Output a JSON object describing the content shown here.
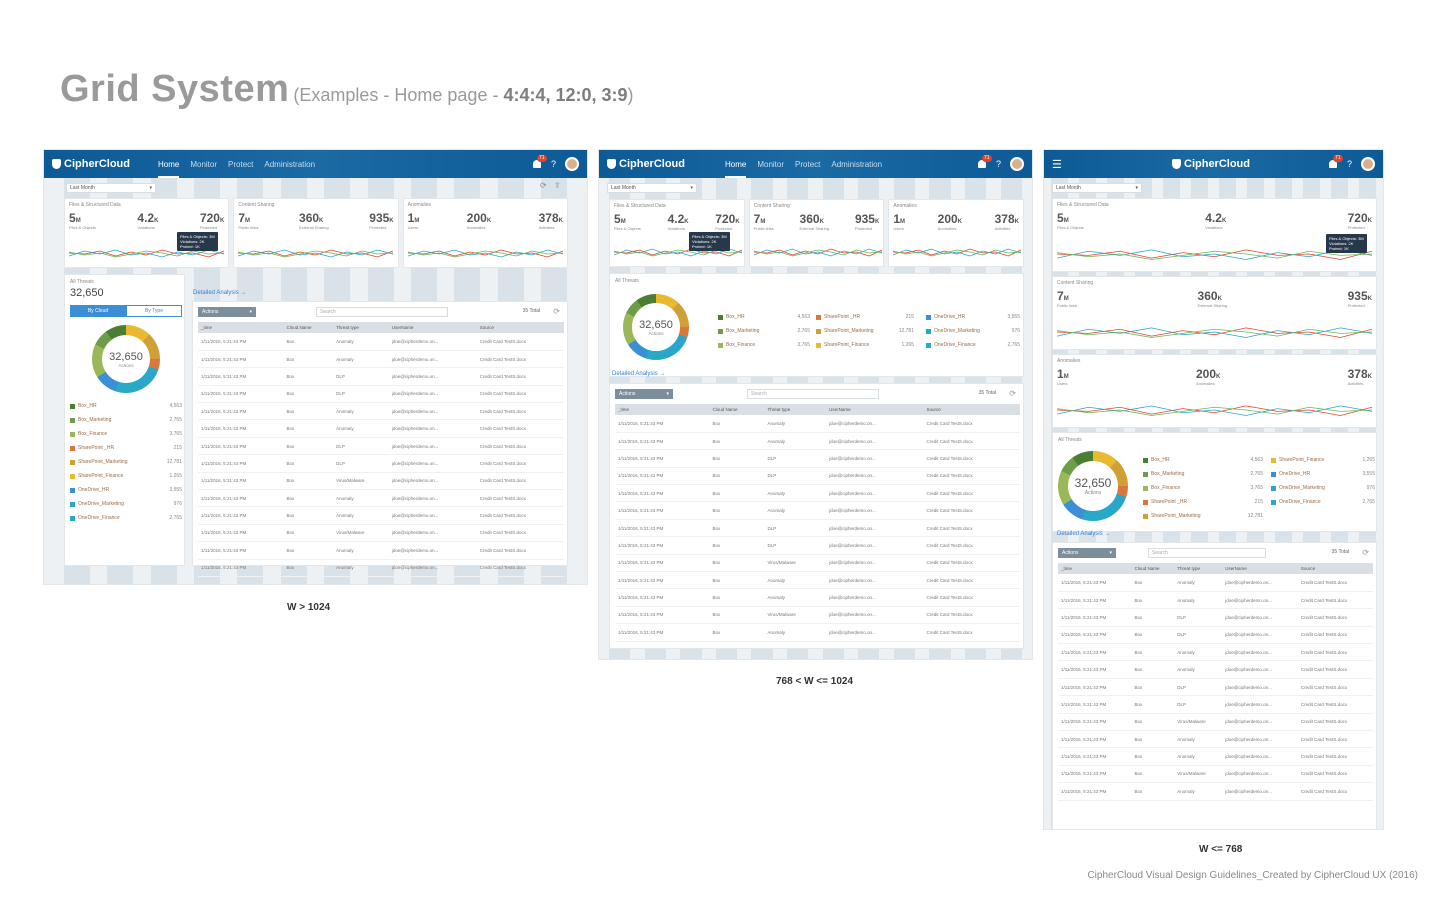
{
  "page": {
    "title_main": "Grid System",
    "title_open": "(Examples - Home page - ",
    "title_bold": "4:4:4, 12:0, 3:9",
    "title_close": ")",
    "footer": "CipherCloud Visual Design Guidelines_Created by CipherCloud UX (2016)"
  },
  "app": {
    "brand": "CipherCloud",
    "nav": [
      "Home",
      "Monitor",
      "Protect",
      "Administration"
    ],
    "notif_count": "71",
    "help": "?",
    "menu_icon": "hamburger-icon",
    "period": "Last Month"
  },
  "captions": {
    "large": "W > 1024",
    "medium": "768 < W <= 1024",
    "small": "W <= 768"
  },
  "kpis": {
    "files": {
      "header": "Files & Structured Data",
      "v1": "5",
      "u1": "M",
      "l1": "Files & Objects",
      "v2": "4.2",
      "u2": "K",
      "l2": "Violations",
      "v3": "720",
      "u3": "K",
      "l3": "Protected",
      "tip": [
        "Files & Objects: 3M",
        "Violations: 2K",
        "Protect: 1K"
      ]
    },
    "sharing": {
      "header": "Content Sharing",
      "v1": "7",
      "u1": "M",
      "l1": "Public links",
      "v2": "360",
      "u2": "K",
      "l2": "External Sharing",
      "v3": "935",
      "u3": "K",
      "l3": "Protected"
    },
    "anomalies": {
      "header": "Anomalies",
      "v1": "1",
      "u1": "M",
      "l1": "Users",
      "v2": "200",
      "u2": "K",
      "l2": "Anomalies",
      "v3": "378",
      "u3": "K",
      "l3": "Activities"
    },
    "axis": [
      "5M",
      "2.5M",
      "0"
    ],
    "dates": [
      "02/11",
      "02/15",
      "02/16"
    ]
  },
  "threats": {
    "header": "All Threats",
    "total": "32,650",
    "center_label": "Actions",
    "toggle": [
      "By Cloud",
      "By Type"
    ],
    "detailed": "Detailed Analysis →",
    "legend": [
      {
        "name": "Box_HR",
        "count": "4,563",
        "color": "#4b7d34"
      },
      {
        "name": "Box_Marketing",
        "count": "2,765",
        "color": "#6e9d49"
      },
      {
        "name": "Box_Finance",
        "count": "3,765",
        "color": "#9ab75a"
      },
      {
        "name": "SharePoint _HR",
        "count": "215",
        "color": "#d9773e"
      },
      {
        "name": "SharePoint_Marketing",
        "count": "12,781",
        "color": "#cfa036"
      },
      {
        "name": "SharePoint_Finance",
        "count": "1,265",
        "color": "#e9b930"
      },
      {
        "name": "OneDrive_HR",
        "count": "3,555",
        "color": "#3a8fd6"
      },
      {
        "name": "OneDrive_Marketing",
        "count": "976",
        "color": "#2aa6c9"
      },
      {
        "name": "OneDrive_Finance",
        "count": "2,765",
        "color": "#28a9c7"
      }
    ]
  },
  "table": {
    "actions": "Actions",
    "search": "Search",
    "count": "35 Total",
    "headers": [
      "_time",
      "Cloud Name",
      "Threat type",
      "UserName",
      "Source"
    ],
    "rows": [
      [
        "1/11/2016, 5:21:43 PM",
        "Box",
        "Anomaly",
        "jdoe@cipherdemo.on...",
        "Credit Card TestS.docx"
      ],
      [
        "1/11/2016, 5:21:43 PM",
        "Box",
        "Anomaly",
        "jdoe@cipherdemo.on...",
        "Credit Card TestS.docx"
      ],
      [
        "1/11/2016, 5:21:43 PM",
        "Box",
        "DLP",
        "jdoe@cipherdemo.on...",
        "Credit Card TestS.docx"
      ],
      [
        "1/11/2016, 5:21:43 PM",
        "Box",
        "DLP",
        "jdoe@cipherdemo.on...",
        "Credit Card TestS.docx"
      ],
      [
        "1/11/2016, 5:21:43 PM",
        "Box",
        "Anomaly",
        "jdoe@cipherdemo.on...",
        "Credit Card TestS.docx"
      ],
      [
        "1/11/2016, 5:21:43 PM",
        "Box",
        "Anomaly",
        "jdoe@cipherdemo.on...",
        "Credit Card TestS.docx"
      ],
      [
        "1/11/2016, 5:21:43 PM",
        "Box",
        "DLP",
        "jdoe@cipherdemo.on...",
        "Credit Card TestS.docx"
      ],
      [
        "1/11/2016, 5:21:43 PM",
        "Box",
        "DLP",
        "jdoe@cipherdemo.on...",
        "Credit Card TestS.docx"
      ],
      [
        "1/11/2016, 5:21:43 PM",
        "Box",
        "Virus/Malware",
        "jdoe@cipherdemo.on...",
        "Credit Card TestS.docx"
      ],
      [
        "1/11/2016, 5:21:43 PM",
        "Box",
        "Anomaly",
        "jdoe@cipherdemo.on...",
        "Credit Card TestS.docx"
      ],
      [
        "1/11/2016, 5:21:43 PM",
        "Box",
        "Anomaly",
        "jdoe@cipherdemo.on...",
        "Credit Card TestS.docx"
      ],
      [
        "1/11/2016, 5:21:43 PM",
        "Box",
        "Virus/Malware",
        "jdoe@cipherdemo.on...",
        "Credit Card TestS.docx"
      ],
      [
        "1/11/2016, 5:21:43 PM",
        "Box",
        "Anomaly",
        "jdoe@cipherdemo.on...",
        "Credit Card TestS.docx"
      ]
    ]
  },
  "colors": {
    "nav": "#0c5a96",
    "accent": "#3a8fd6",
    "grid_column": "#b0c4d6"
  }
}
